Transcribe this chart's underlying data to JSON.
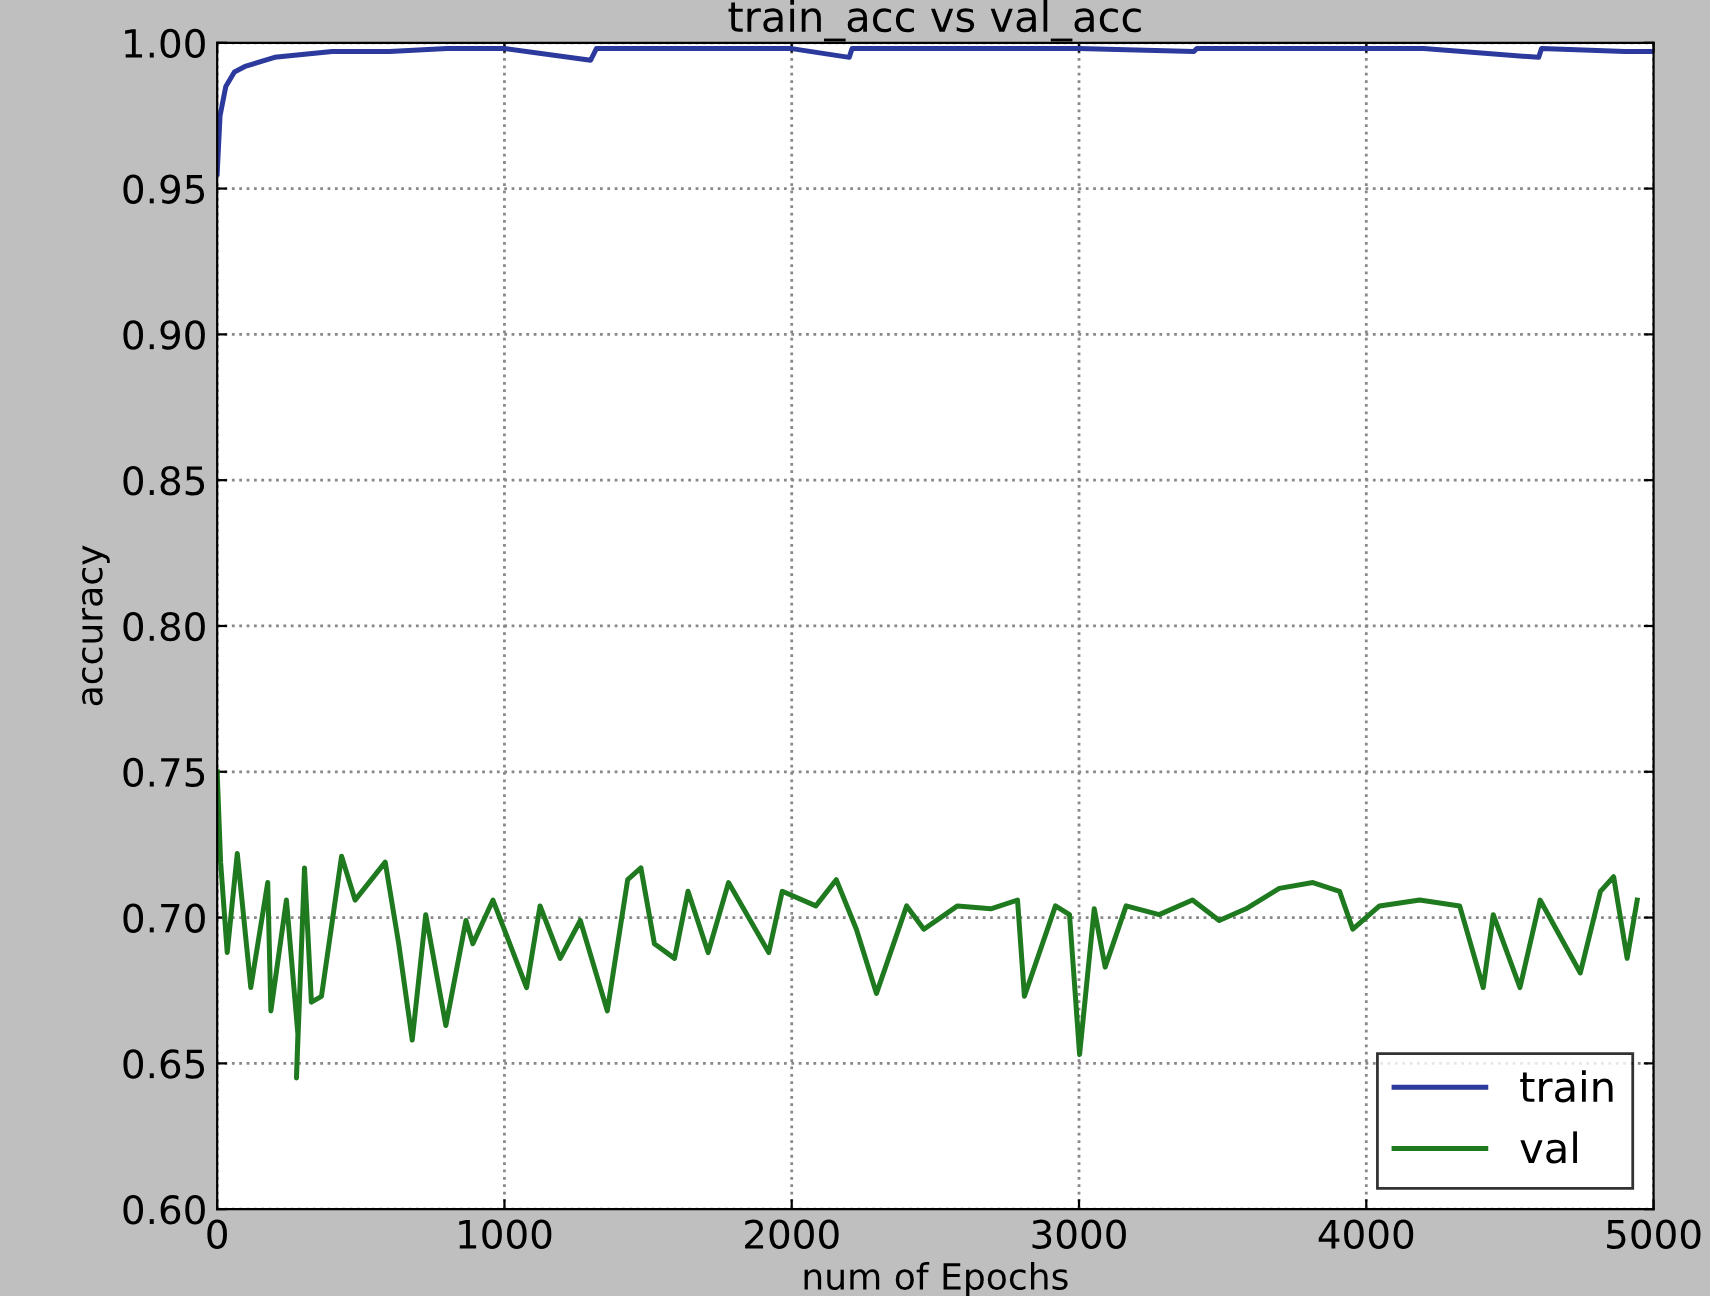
{
  "chart_data": {
    "type": "line",
    "title": "train_acc vs val_acc",
    "xlabel": "num of Epochs",
    "ylabel": "accuracy",
    "xlim": [
      0,
      5000
    ],
    "xticks": [
      0,
      1000,
      2000,
      3000,
      4000,
      5000
    ],
    "ylim": [
      0.6,
      1.0
    ],
    "yticks": [
      {
        "value": 0.6,
        "label": "0.60"
      },
      {
        "value": 0.65,
        "label": "0.65"
      },
      {
        "value": 0.7,
        "label": "0.70"
      },
      {
        "value": 0.75,
        "label": "0.75"
      },
      {
        "value": 0.8,
        "label": "0.80"
      },
      {
        "value": 0.85,
        "label": "0.85"
      },
      {
        "value": 0.9,
        "label": "0.90"
      },
      {
        "value": 0.95,
        "label": "0.95"
      },
      {
        "value": 1.0,
        "label": "1.00"
      }
    ],
    "grid": true,
    "legend": "lower right",
    "line_style": "solid",
    "series": [
      {
        "name": "train",
        "color": "#2b3a9c",
        "x": [
          0,
          10,
          30,
          60,
          100,
          200,
          400,
          600,
          800,
          1000,
          1300,
          1320,
          1600,
          2000,
          2200,
          2210,
          2500,
          3000,
          3400,
          3410,
          3800,
          4200,
          4600,
          4610,
          4900,
          5000
        ],
        "values": [
          0.955,
          0.975,
          0.985,
          0.99,
          0.992,
          0.995,
          0.997,
          0.997,
          0.998,
          0.998,
          0.994,
          0.998,
          0.998,
          0.998,
          0.995,
          0.998,
          0.998,
          0.998,
          0.997,
          0.998,
          0.998,
          0.998,
          0.995,
          0.998,
          0.997,
          0.997
        ]
      },
      {
        "name": "val",
        "color": "#1f7a1f",
        "x": [
          0,
          12,
          35,
          70,
          117,
          176,
          187,
          241,
          281,
          276,
          304,
          328,
          363,
          433,
          480,
          585,
          632,
          679,
          726,
          796,
          866,
          890,
          960,
          1007,
          1077,
          1124,
          1194,
          1264,
          1358,
          1429,
          1475,
          1522,
          1592,
          1639,
          1709,
          1780,
          1920,
          1967,
          2084,
          2155,
          2225,
          2295,
          2400,
          2460,
          2577,
          2693,
          2786,
          2810,
          2918,
          2967,
          3002,
          3053,
          3091,
          3164,
          3279,
          3395,
          3488,
          3581,
          3697,
          3814,
          3907,
          3953,
          4046,
          4186,
          4325,
          4407,
          4442,
          4535,
          4605,
          4745,
          4815,
          4861,
          4908,
          4943
        ],
        "values": [
          0.75,
          0.719,
          0.688,
          0.722,
          0.676,
          0.712,
          0.668,
          0.706,
          0.66,
          0.645,
          0.717,
          0.671,
          0.673,
          0.721,
          0.706,
          0.719,
          0.691,
          0.658,
          0.701,
          0.663,
          0.699,
          0.691,
          0.706,
          0.694,
          0.676,
          0.704,
          0.686,
          0.699,
          0.668,
          0.713,
          0.717,
          0.691,
          0.686,
          0.709,
          0.688,
          0.712,
          0.688,
          0.709,
          0.704,
          0.713,
          0.696,
          0.674,
          0.704,
          0.696,
          0.704,
          0.703,
          0.706,
          0.673,
          0.704,
          0.701,
          0.653,
          0.703,
          0.683,
          0.704,
          0.701,
          0.706,
          0.699,
          0.703,
          0.71,
          0.712,
          0.709,
          0.696,
          0.704,
          0.706,
          0.704,
          0.676,
          0.701,
          0.676,
          0.706,
          0.681,
          0.709,
          0.714,
          0.686,
          0.706
        ]
      }
    ]
  }
}
